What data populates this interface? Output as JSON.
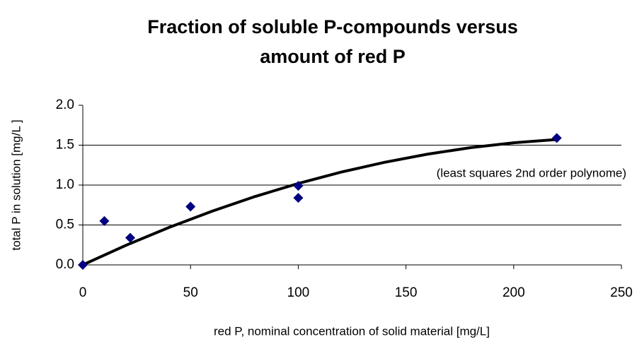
{
  "chart_data": {
    "type": "scatter",
    "title": [
      "Fraction of soluble P-compounds versus",
      "amount of red P"
    ],
    "x_label": "red P, nominal concentration of solid material [mg/L]",
    "y_label": "total P in solution [mg/L ]",
    "annotation": "(least squares 2nd order polynome)",
    "series": [
      {
        "color": "#000080",
        "x": [
          0,
          10,
          22,
          50,
          100,
          100,
          220
        ],
        "values": [
          0,
          0.55,
          0.34,
          0.73,
          0.99,
          0.84,
          1.59
        ]
      }
    ],
    "trendline": {
      "color": "#000000",
      "x": [
        0,
        20,
        40,
        60,
        80,
        100,
        120,
        140,
        160,
        180,
        200,
        220
      ],
      "values": [
        0,
        0.245,
        0.469,
        0.673,
        0.857,
        1.02,
        1.163,
        1.285,
        1.387,
        1.469,
        1.53,
        1.571
      ]
    },
    "xlim": [
      0,
      250
    ],
    "xticks": [
      0,
      50,
      100,
      150,
      200,
      250
    ],
    "ylim": [
      0,
      2
    ],
    "yticks": [
      {
        "value": 0,
        "label": "0.0"
      },
      {
        "value": 0.5,
        "label": "0.5"
      },
      {
        "value": 1,
        "label": "1.0"
      },
      {
        "value": 1.5,
        "label": "1.5"
      },
      {
        "value": 2,
        "label": "2.0"
      }
    ],
    "grid": true
  }
}
